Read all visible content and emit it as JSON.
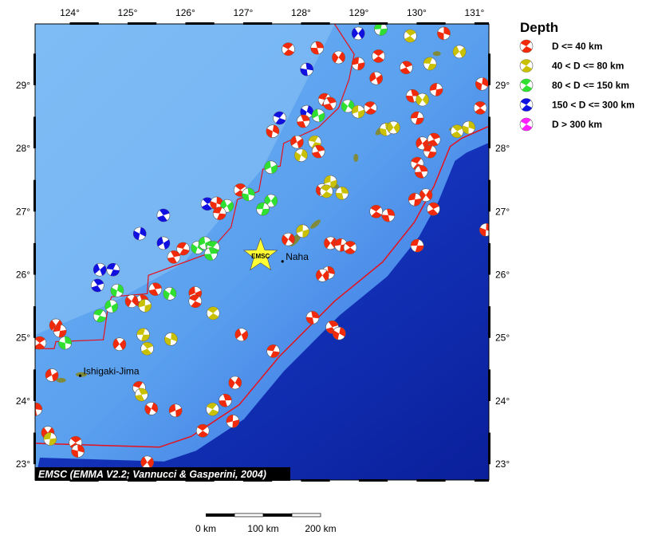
{
  "map": {
    "lon_range": [
      123.4,
      131.25
    ],
    "lat_range": [
      22.75,
      29.97
    ],
    "lon_ticks": [
      124,
      125,
      126,
      127,
      128,
      129,
      130,
      131
    ],
    "lat_ticks": [
      23,
      24,
      25,
      26,
      27,
      28,
      29
    ],
    "degree_symbol": "°",
    "credit": "EMSC (EMMA V2.2; Vannucci & Gasperini, 2004)",
    "places": [
      {
        "name": "Naha",
        "lon": 127.68,
        "lat": 26.21
      },
      {
        "name": "Ishigaki-Jima",
        "lon": 124.18,
        "lat": 24.4
      }
    ],
    "star": {
      "label": "EMSC",
      "lon": 127.3,
      "lat": 26.3,
      "color": "#ffff33"
    },
    "trench_color": "#e8101a",
    "trench": [
      [
        123.4,
        23.33
      ],
      [
        125.55,
        23.27
      ],
      [
        126.1,
        23.44
      ],
      [
        126.93,
        23.94
      ],
      [
        127.62,
        24.7
      ],
      [
        128.58,
        25.58
      ],
      [
        129.41,
        26.2
      ],
      [
        129.96,
        26.83
      ],
      [
        130.3,
        27.4
      ],
      [
        130.58,
        28.03
      ],
      [
        130.78,
        28.16
      ],
      [
        131.25,
        28.35
      ]
    ],
    "backarc": [
      [
        123.4,
        24.83
      ],
      [
        123.73,
        24.83
      ],
      [
        123.76,
        24.94
      ],
      [
        124.58,
        24.97
      ],
      [
        124.65,
        25.42
      ],
      [
        124.72,
        25.65
      ],
      [
        125.34,
        25.7
      ],
      [
        125.36,
        25.99
      ],
      [
        126.38,
        26.33
      ],
      [
        126.79,
        26.75
      ],
      [
        126.9,
        27.19
      ],
      [
        127.27,
        27.32
      ],
      [
        127.34,
        27.67
      ],
      [
        127.64,
        27.72
      ],
      [
        127.7,
        28.08
      ],
      [
        128.3,
        28.33
      ],
      [
        128.65,
        28.64
      ],
      [
        128.83,
        29.09
      ],
      [
        128.92,
        29.49
      ],
      [
        128.58,
        29.97
      ]
    ]
  },
  "legend": {
    "title": "Depth",
    "items": [
      {
        "label": "D <= 40 km",
        "color": "#f02a0a"
      },
      {
        "label": "40 < D <= 80 km",
        "color": "#c8c000"
      },
      {
        "label": "80 < D <= 150 km",
        "color": "#30e030"
      },
      {
        "label": "150 < D <= 300 km",
        "color": "#1010e0"
      },
      {
        "label": "D > 300 km",
        "color": "#ff20ff"
      }
    ]
  },
  "scale_bar": {
    "labels": [
      "0 km",
      "100 km",
      "200 km"
    ]
  },
  "events": [
    [
      127.78,
      29.57,
      0
    ],
    [
      128.28,
      29.59,
      0
    ],
    [
      128.65,
      29.44,
      0
    ],
    [
      128.99,
      29.34,
      0
    ],
    [
      129.34,
      29.46,
      0
    ],
    [
      128.1,
      29.25,
      3
    ],
    [
      128.99,
      29.82,
      3
    ],
    [
      129.38,
      29.89,
      2
    ],
    [
      129.89,
      29.78,
      1
    ],
    [
      130.47,
      29.82,
      0
    ],
    [
      130.74,
      29.53,
      1
    ],
    [
      130.23,
      29.34,
      1
    ],
    [
      129.82,
      29.28,
      0
    ],
    [
      131.13,
      29.02,
      0
    ],
    [
      129.3,
      29.11,
      0
    ],
    [
      128.41,
      28.77,
      0
    ],
    [
      128.5,
      28.71,
      0
    ],
    [
      128.1,
      28.58,
      3
    ],
    [
      128.3,
      28.52,
      2
    ],
    [
      127.63,
      28.48,
      3
    ],
    [
      128.04,
      28.43,
      0
    ],
    [
      128.81,
      28.67,
      2
    ],
    [
      128.99,
      28.58,
      1
    ],
    [
      129.2,
      28.64,
      0
    ],
    [
      129.93,
      28.83,
      0
    ],
    [
      130.1,
      28.77,
      1
    ],
    [
      130.34,
      28.93,
      0
    ],
    [
      131.1,
      28.64,
      0
    ],
    [
      129.47,
      28.3,
      1
    ],
    [
      129.6,
      28.33,
      1
    ],
    [
      130.01,
      28.48,
      0
    ],
    [
      130.7,
      28.27,
      1
    ],
    [
      130.9,
      28.33,
      1
    ],
    [
      130.1,
      28.08,
      0
    ],
    [
      130.23,
      27.95,
      0
    ],
    [
      130.3,
      28.14,
      0
    ],
    [
      127.51,
      28.27,
      0
    ],
    [
      127.93,
      28.1,
      0
    ],
    [
      128.24,
      28.1,
      1
    ],
    [
      128.3,
      27.95,
      0
    ],
    [
      128.0,
      27.89,
      1
    ],
    [
      127.48,
      27.7,
      2
    ],
    [
      130.01,
      27.76,
      0
    ],
    [
      130.08,
      27.63,
      0
    ],
    [
      128.37,
      27.34,
      0
    ],
    [
      128.51,
      27.47,
      1
    ],
    [
      128.44,
      27.32,
      1
    ],
    [
      128.71,
      27.29,
      1
    ],
    [
      130.16,
      27.26,
      0
    ],
    [
      129.97,
      27.19,
      0
    ],
    [
      126.95,
      27.34,
      0
    ],
    [
      127.09,
      27.27,
      2
    ],
    [
      127.48,
      27.17,
      2
    ],
    [
      127.34,
      27.04,
      2
    ],
    [
      126.38,
      27.12,
      3
    ],
    [
      126.54,
      27.13,
      0
    ],
    [
      126.72,
      27.09,
      2
    ],
    [
      126.59,
      26.97,
      0
    ],
    [
      125.62,
      26.94,
      3
    ],
    [
      125.21,
      26.65,
      3
    ],
    [
      125.62,
      26.5,
      3
    ],
    [
      125.96,
      26.41,
      0
    ],
    [
      125.8,
      26.28,
      0
    ],
    [
      126.21,
      26.43,
      2
    ],
    [
      126.34,
      26.5,
      2
    ],
    [
      126.48,
      26.43,
      2
    ],
    [
      126.44,
      26.33,
      2
    ],
    [
      127.78,
      26.56,
      0
    ],
    [
      128.03,
      26.69,
      1
    ],
    [
      129.3,
      27.0,
      0
    ],
    [
      129.51,
      26.94,
      0
    ],
    [
      128.51,
      26.5,
      0
    ],
    [
      128.69,
      26.47,
      0
    ],
    [
      128.85,
      26.43,
      0
    ],
    [
      128.47,
      26.03,
      0
    ],
    [
      128.37,
      25.99,
      0
    ],
    [
      130.01,
      26.46,
      0
    ],
    [
      130.29,
      27.04,
      0
    ],
    [
      131.2,
      26.71,
      0
    ],
    [
      124.52,
      26.08,
      3
    ],
    [
      124.75,
      26.08,
      3
    ],
    [
      124.48,
      25.83,
      3
    ],
    [
      124.82,
      25.75,
      2
    ],
    [
      124.72,
      25.5,
      2
    ],
    [
      124.52,
      25.35,
      2
    ],
    [
      125.48,
      25.77,
      0
    ],
    [
      125.73,
      25.7,
      2
    ],
    [
      126.17,
      25.71,
      0
    ],
    [
      126.17,
      25.58,
      0
    ],
    [
      125.25,
      25.58,
      0
    ],
    [
      125.07,
      25.58,
      0
    ],
    [
      125.3,
      25.51,
      1
    ],
    [
      126.48,
      25.39,
      1
    ],
    [
      128.2,
      25.32,
      0
    ],
    [
      123.76,
      25.2,
      0
    ],
    [
      123.83,
      25.11,
      0
    ],
    [
      123.48,
      24.92,
      0
    ],
    [
      123.92,
      24.92,
      2
    ],
    [
      124.86,
      24.9,
      0
    ],
    [
      125.27,
      25.05,
      1
    ],
    [
      125.34,
      24.83,
      1
    ],
    [
      125.75,
      24.98,
      1
    ],
    [
      126.97,
      25.05,
      0
    ],
    [
      127.52,
      24.79,
      0
    ],
    [
      128.54,
      25.17,
      0
    ],
    [
      128.66,
      25.07,
      0
    ],
    [
      123.69,
      24.41,
      0
    ],
    [
      125.2,
      24.21,
      0
    ],
    [
      125.24,
      24.1,
      1
    ],
    [
      125.41,
      23.88,
      0
    ],
    [
      125.83,
      23.85,
      0
    ],
    [
      126.47,
      23.87,
      1
    ],
    [
      126.69,
      24.01,
      0
    ],
    [
      126.86,
      24.29,
      0
    ],
    [
      126.82,
      23.68,
      0
    ],
    [
      126.3,
      23.53,
      0
    ],
    [
      123.41,
      23.87,
      0
    ],
    [
      123.62,
      23.5,
      0
    ],
    [
      123.66,
      23.4,
      1
    ],
    [
      124.1,
      23.34,
      0
    ],
    [
      124.14,
      23.21,
      0
    ],
    [
      125.34,
      23.03,
      0
    ]
  ]
}
